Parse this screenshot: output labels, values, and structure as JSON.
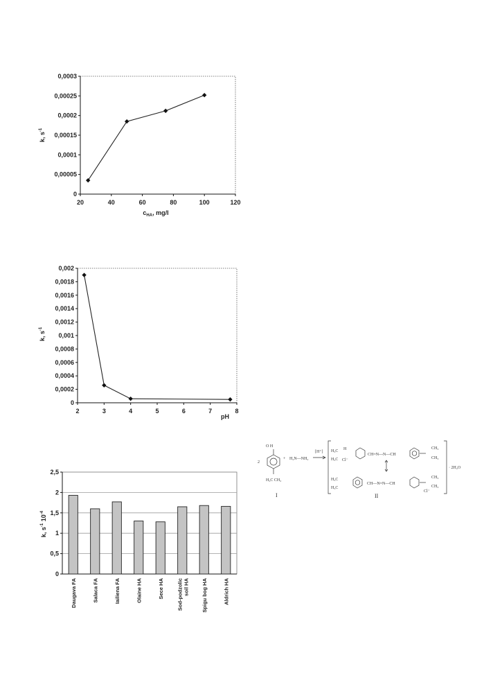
{
  "chart_data": [
    {
      "type": "line",
      "ylabel_main": "k, s",
      "ylabel_sup": "-1",
      "xlabel_main": "c",
      "xlabel_sub": "HA",
      "xlabel_unit": ", mg/l",
      "x": [
        25,
        50,
        75,
        100
      ],
      "y": [
        3.5e-05,
        0.000185,
        0.000212,
        0.000252
      ],
      "xlim": [
        20,
        120
      ],
      "ylim": [
        0,
        0.0003
      ],
      "xticks": [
        "20",
        "40",
        "60",
        "80",
        "100",
        "120"
      ],
      "yticks": [
        "0",
        "0,00005",
        "0,0001",
        "0,00015",
        "0,0002",
        "0,00025",
        "0,0003"
      ],
      "marker": "diamond",
      "grid": false
    },
    {
      "type": "line",
      "ylabel_main": "k, s",
      "ylabel_sup": "-1",
      "xlabel": "pH",
      "x": [
        2.25,
        3,
        4,
        7.75
      ],
      "y": [
        0.0019,
        0.00026,
        6e-05,
        5e-05
      ],
      "xlim": [
        2,
        8
      ],
      "ylim": [
        0,
        0.002
      ],
      "xticks": [
        "2",
        "3",
        "4",
        "5",
        "6",
        "7",
        "8"
      ],
      "yticks": [
        "0",
        "0,0002",
        "0,0004",
        "0,0006",
        "0,0008",
        "0,001",
        "0,0012",
        "0,0014",
        "0,0016",
        "0,0018",
        "0,002"
      ],
      "marker": "diamond",
      "grid": false
    },
    {
      "type": "bar",
      "ylabel_main": "k, s",
      "ylabel_sup": "-1",
      "ylabel_tail": " 10",
      "ylabel_sup2": "-4",
      "categories": [
        "Daugava FA",
        "Salaca FA",
        "Iailiena FA",
        "Olaine HA",
        "Sece HA",
        "Sod-podzolic soil HA",
        "Spigu bog HA",
        "Aldrich HA"
      ],
      "values": [
        1.93,
        1.6,
        1.77,
        1.3,
        1.28,
        1.65,
        1.68,
        1.66
      ],
      "ylim": [
        0,
        2.5
      ],
      "yticks": [
        "0",
        "0,5",
        "1",
        "1,5",
        "2",
        "2,5"
      ],
      "grid": true
    }
  ],
  "scheme": {
    "label_I": "I",
    "label_II": "II",
    "reagent": "H₂N—NH₂",
    "catalyst": "[H⁺]",
    "coef": "2",
    "plus": "+",
    "water": "· 2H₂O",
    "nme2_left": "H₃C    CH₃",
    "ch3": "CH₃",
    "h3c": "H₃C",
    "cl": "Cl⁻",
    "chain_top": "CH=N—N—CH",
    "chain_bottom": "CH—N=N—CH",
    "aldehyde": "O    H",
    "h_plus": "H"
  }
}
